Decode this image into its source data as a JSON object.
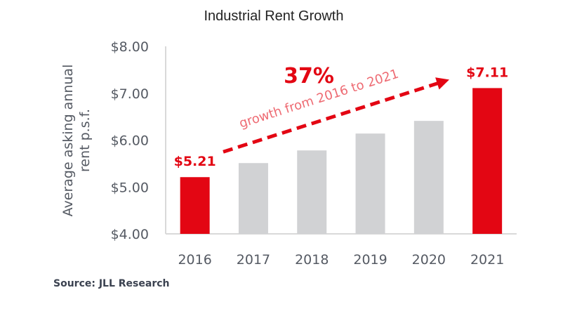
{
  "chart_data": {
    "type": "bar",
    "title": "Industrial Rent Growth",
    "xlabel": "",
    "ylabel": [
      "Average asking annual",
      "rent p.s.f."
    ],
    "categories": [
      "2016",
      "2017",
      "2018",
      "2019",
      "2020",
      "2021"
    ],
    "values": [
      5.21,
      5.51,
      5.78,
      6.14,
      6.41,
      7.11
    ],
    "highlighted": [
      true,
      false,
      false,
      false,
      false,
      true
    ],
    "data_labels": [
      "$5.21",
      null,
      null,
      null,
      null,
      "$7.11"
    ],
    "ylim": [
      4,
      8
    ],
    "yticks": [
      4,
      5,
      6,
      7,
      8
    ],
    "ytick_labels": [
      "$4.00",
      "$5.00",
      "$6.00",
      "$7.00",
      "$8.00"
    ],
    "grid": false,
    "colors": {
      "highlight": "#e30613",
      "default": "#d1d2d4",
      "axis": "#d9d9d9"
    },
    "annotation": {
      "headline": "37%",
      "text": "growth from 2016 to 2021",
      "arrow_from": "2016",
      "arrow_to": "2021",
      "style": "dashed-arrow"
    },
    "source": "Source: JLL Research"
  }
}
